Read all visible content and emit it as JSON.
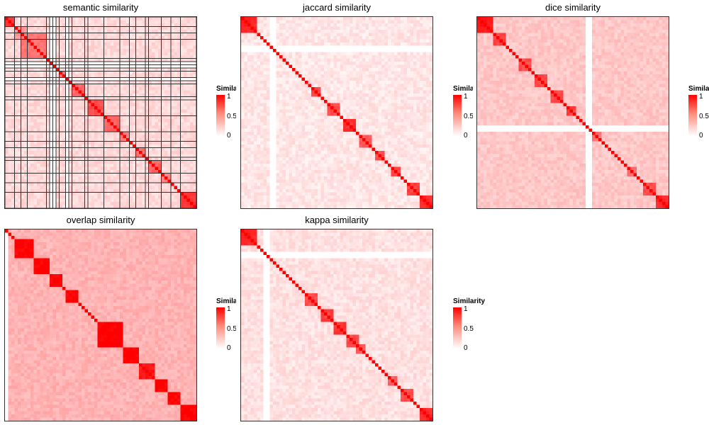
{
  "panels": [
    {
      "id": "semantic",
      "title": "semantic similarity",
      "legend_title": "Similarity",
      "clipped_legend": true,
      "outlined": true
    },
    {
      "id": "jaccard",
      "title": "jaccard similarity",
      "legend_title": "Similarity",
      "clipped_legend": true,
      "outlined": false
    },
    {
      "id": "dice",
      "title": "dice similarity",
      "legend_title": "Similarity",
      "clipped_legend": true,
      "outlined": false
    },
    {
      "id": "overlap",
      "title": "overlap similarity",
      "legend_title": "Similarity",
      "clipped_legend": true,
      "outlined": false
    },
    {
      "id": "kappa",
      "title": "kappa similarity",
      "legend_title": "Similarity",
      "clipped_legend": false,
      "outlined": false
    }
  ],
  "legend_ticks": [
    "1",
    "0.5",
    "0"
  ],
  "colors": {
    "high": "#ff0000",
    "mid": "#ff8a7a",
    "low": "#ffffff",
    "border": "#333333"
  },
  "chart_data": [
    {
      "type": "heatmap",
      "title": "semantic similarity",
      "matrix_size": 60,
      "value_range": [
        0,
        1
      ],
      "diagonal_value": 1,
      "background_value": 0.15,
      "blocks": [
        [
          0,
          3,
          0.75
        ],
        [
          3,
          4,
          0.4
        ],
        [
          5,
          8,
          0.55
        ],
        [
          13,
          3,
          0.7
        ],
        [
          17,
          3,
          0.55
        ],
        [
          21,
          4,
          0.6
        ],
        [
          26,
          5,
          0.7
        ],
        [
          31,
          5,
          0.6
        ],
        [
          36,
          3,
          0.5
        ],
        [
          41,
          3,
          0.55
        ],
        [
          45,
          4,
          0.6
        ],
        [
          49,
          3,
          0.5
        ],
        [
          55,
          5,
          0.8
        ]
      ],
      "blank_rows": [
        14,
        15,
        19
      ],
      "blank_cols": [
        14,
        15,
        19
      ]
    },
    {
      "type": "heatmap",
      "title": "jaccard similarity",
      "matrix_size": 60,
      "value_range": [
        0,
        1
      ],
      "diagonal_value": 1,
      "background_value": 0.1,
      "blocks": [
        [
          0,
          5,
          0.85
        ],
        [
          22,
          3,
          0.7
        ],
        [
          27,
          4,
          0.7
        ],
        [
          32,
          4,
          0.8
        ],
        [
          37,
          4,
          0.65
        ],
        [
          42,
          3,
          0.7
        ],
        [
          47,
          3,
          0.7
        ],
        [
          52,
          4,
          0.75
        ],
        [
          56,
          4,
          0.85
        ]
      ],
      "blank_rows": [
        9,
        10
      ],
      "blank_cols": [
        9,
        10
      ]
    },
    {
      "type": "heatmap",
      "title": "dice similarity",
      "matrix_size": 60,
      "value_range": [
        0,
        1
      ],
      "diagonal_value": 1,
      "background_value": 0.22,
      "blocks": [
        [
          0,
          5,
          0.9
        ],
        [
          5,
          4,
          0.75
        ],
        [
          13,
          4,
          0.7
        ],
        [
          18,
          4,
          0.75
        ],
        [
          23,
          4,
          0.7
        ],
        [
          28,
          3,
          0.75
        ],
        [
          36,
          3,
          0.55
        ],
        [
          47,
          3,
          0.55
        ],
        [
          52,
          4,
          0.7
        ],
        [
          56,
          4,
          0.85
        ]
      ],
      "blank_rows": [
        34,
        35
      ],
      "blank_cols": [
        34,
        35
      ]
    },
    {
      "type": "heatmap",
      "title": "overlap similarity",
      "matrix_size": 60,
      "value_range": [
        0,
        1
      ],
      "diagonal_value": 1,
      "background_value": 0.3,
      "blocks": [
        [
          3,
          6,
          1
        ],
        [
          9,
          5,
          1
        ],
        [
          14,
          4,
          1
        ],
        [
          19,
          4,
          1
        ],
        [
          29,
          8,
          1
        ],
        [
          37,
          5,
          1
        ],
        [
          42,
          5,
          0.9
        ],
        [
          47,
          4,
          1
        ],
        [
          51,
          4,
          1
        ],
        [
          55,
          5,
          1
        ]
      ],
      "blank_rows": [],
      "blank_cols": [
        0
      ]
    },
    {
      "type": "heatmap",
      "title": "kappa similarity",
      "matrix_size": 60,
      "value_range": [
        0,
        1
      ],
      "diagonal_value": 1,
      "background_value": 0.12,
      "blocks": [
        [
          0,
          5,
          0.85
        ],
        [
          20,
          4,
          0.7
        ],
        [
          25,
          4,
          0.75
        ],
        [
          29,
          4,
          0.8
        ],
        [
          33,
          4,
          0.7
        ],
        [
          36,
          3,
          0.65
        ],
        [
          46,
          3,
          0.6
        ],
        [
          50,
          4,
          0.7
        ],
        [
          56,
          4,
          0.85
        ]
      ],
      "blank_rows": [
        7,
        8
      ],
      "blank_cols": [
        7,
        8
      ]
    }
  ]
}
